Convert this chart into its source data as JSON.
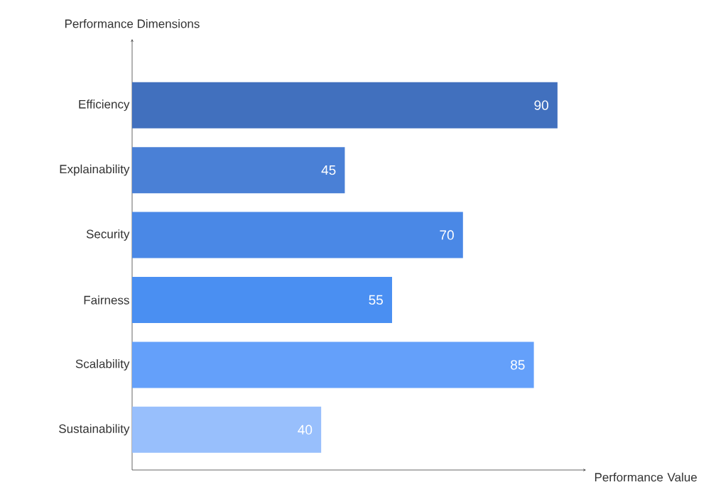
{
  "chart_data": {
    "type": "bar",
    "orientation": "horizontal",
    "xlabel": "Performance Value",
    "ylabel": "Performance Dimensions",
    "categories": [
      "Efficiency",
      "Explainability",
      "Security",
      "Fairness",
      "Scalability",
      "Sustainability"
    ],
    "values": [
      90,
      45,
      70,
      55,
      85,
      40
    ],
    "colors": [
      "#4170be",
      "#4a80d6",
      "#4a88e6",
      "#4a8ff2",
      "#64a0fa",
      "#98bffc"
    ],
    "data_labels": true
  }
}
